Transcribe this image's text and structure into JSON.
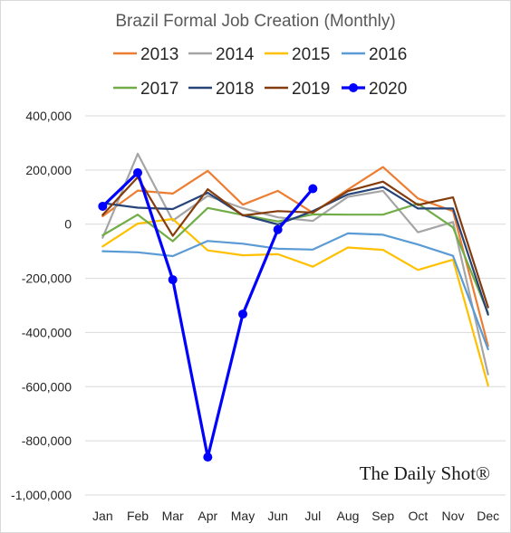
{
  "chart_data": {
    "type": "line",
    "title": "Brazil Formal Job Creation (Monthly)",
    "xlabel": "",
    "ylabel": "",
    "categories": [
      "Jan",
      "Feb",
      "Mar",
      "Apr",
      "May",
      "Jun",
      "Jul",
      "Aug",
      "Sep",
      "Oct",
      "Nov",
      "Dec"
    ],
    "ylim": [
      -1000000,
      400000
    ],
    "yticks": [
      400000,
      200000,
      0,
      -200000,
      -400000,
      -600000,
      -800000,
      -1000000
    ],
    "ytick_labels": [
      "400,000",
      "200,000",
      "0",
      "-200,000",
      "-400,000",
      "-600,000",
      "-800,000",
      "-1,000,000"
    ],
    "grid": true,
    "legend_position": "top",
    "series": [
      {
        "name": "2013",
        "color": "#ed7d31",
        "values": [
          29000,
          124000,
          113000,
          197000,
          72000,
          123000,
          42000,
          128000,
          211000,
          95000,
          48000,
          -450000
        ]
      },
      {
        "name": "2014",
        "color": "#a5a5a5",
        "values": [
          -50000,
          260000,
          13000,
          105000,
          59000,
          25000,
          12000,
          101000,
          123000,
          -30000,
          8000,
          -555000
        ]
      },
      {
        "name": "2015",
        "color": "#ffc000",
        "values": [
          -82000,
          2000,
          19000,
          -97000,
          -115000,
          -111000,
          -157000,
          -86000,
          -95000,
          -169000,
          -131000,
          -596000
        ]
      },
      {
        "name": "2016",
        "color": "#5b9bd5",
        "values": [
          -100000,
          -104000,
          -118000,
          -62000,
          -72000,
          -91000,
          -94000,
          -34000,
          -39000,
          -75000,
          -117000,
          -462000
        ]
      },
      {
        "name": "2017",
        "color": "#70ad47",
        "values": [
          -41000,
          35000,
          -63000,
          60000,
          34000,
          10000,
          36000,
          35000,
          35000,
          76000,
          -12000,
          -328000
        ]
      },
      {
        "name": "2018",
        "color": "#264478",
        "values": [
          78000,
          61000,
          56000,
          116000,
          33000,
          -1000,
          48000,
          110000,
          137000,
          58000,
          58000,
          -334000
        ]
      },
      {
        "name": "2019",
        "color": "#843c0c",
        "values": [
          34000,
          173000,
          -43000,
          129000,
          32000,
          48000,
          43000,
          122000,
          157000,
          71000,
          99000,
          -307000
        ]
      },
      {
        "name": "2020",
        "color": "#0000ff",
        "markers": true,
        "values": [
          66000,
          190000,
          -205000,
          -860000,
          -332000,
          -20000,
          131000,
          null,
          null,
          null,
          null,
          null
        ]
      }
    ]
  },
  "watermark": "The Daily Shot®"
}
